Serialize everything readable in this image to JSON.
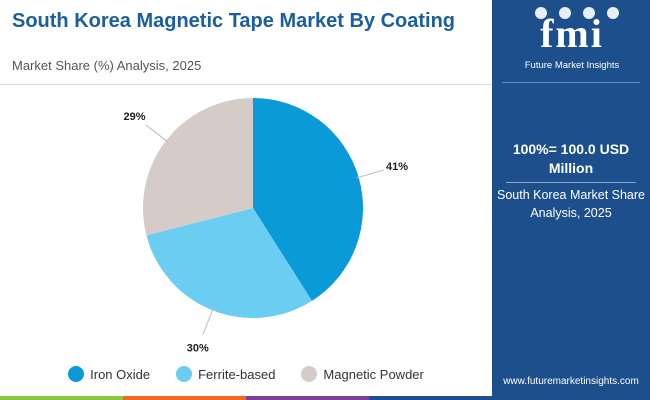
{
  "header": {
    "title": "South Korea Magnetic Tape Market By Coating",
    "subtitle": "Market Share (%) Analysis, 2025"
  },
  "chart_data": {
    "type": "pie",
    "title": "South Korea Magnetic Tape Market By Coating",
    "subtitle": "Market Share (%) Analysis, 2025",
    "categories": [
      "Iron Oxide",
      "Ferrite-based",
      "Magnetic Powder"
    ],
    "values": [
      41,
      30,
      29
    ],
    "labels": [
      "41%",
      "30%",
      "29%"
    ],
    "colors": [
      "#0a9ad8",
      "#6ccdf2",
      "#d6ccc7"
    ],
    "start_angle_deg": 0,
    "direction": "clockwise",
    "legend_position": "bottom"
  },
  "legend": {
    "items": [
      {
        "label": "Iron Oxide",
        "color": "#0a9ad8"
      },
      {
        "label": "Ferrite-based",
        "color": "#6ccdf2"
      },
      {
        "label": "Magnetic Powder",
        "color": "#d6ccc7"
      }
    ]
  },
  "panel": {
    "logo_text": "fmi",
    "logo_caption": "Future Market Insights",
    "total": "100%= 100.0 USD Million",
    "note": "South Korea Market Share Analysis, 2025",
    "website": "www.futuremarketinsights.com",
    "background": "#1c4f8c"
  },
  "bottom_bar_colors": [
    "#8dc63f",
    "#f26722",
    "#7a3e9d",
    "#1c4f8c"
  ]
}
